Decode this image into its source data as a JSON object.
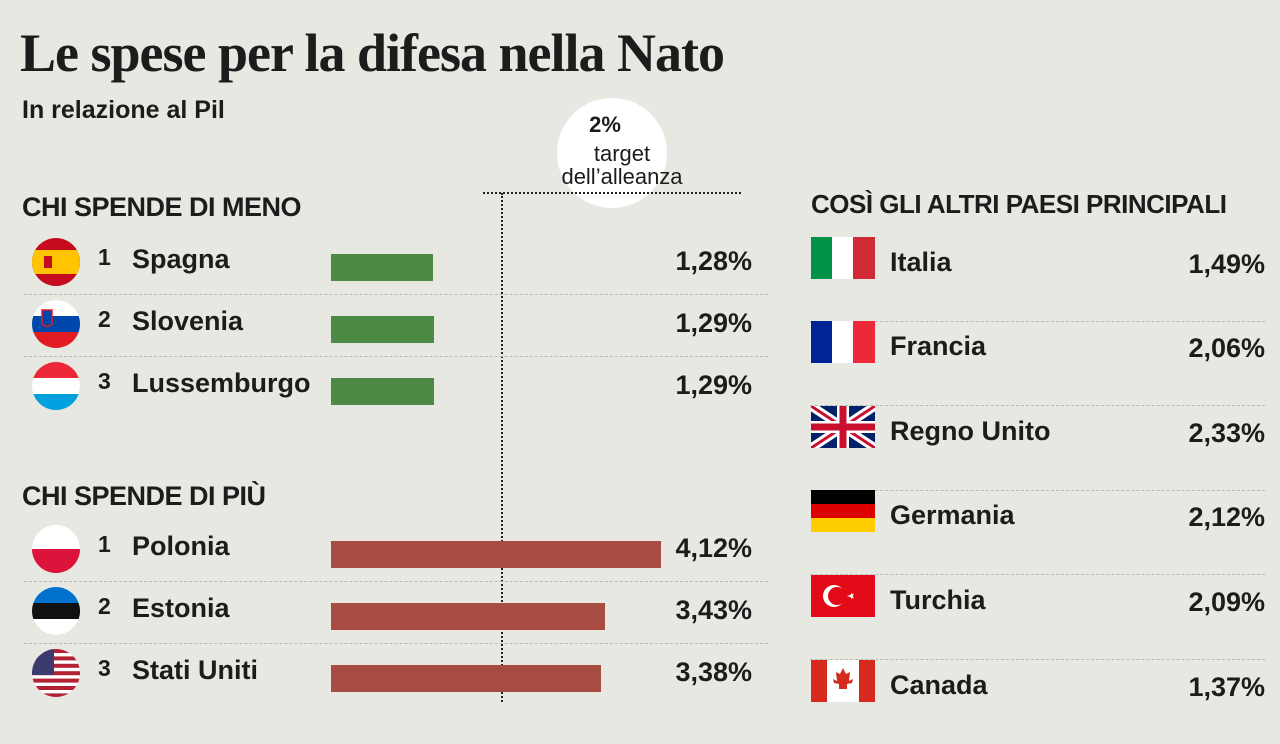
{
  "title": "Le spese per la difesa nella Nato",
  "subtitle": "In relazione al Pil",
  "target": {
    "value": "2%",
    "label_line1": "target",
    "label_line2": "dell’alleanza"
  },
  "colors": {
    "background": "#e8e8e3",
    "low_bar": "#4d8a45",
    "high_bar": "#a84b41"
  },
  "chart_data": [
    {
      "type": "bar",
      "title": "CHI SPENDE DI MENO",
      "categories": [
        "Spagna",
        "Slovenia",
        "Lussemburgo"
      ],
      "ranks": [
        "1",
        "2",
        "3"
      ],
      "values": [
        1.28,
        1.29,
        1.29
      ],
      "labels": [
        "1,28%",
        "1,29%",
        "1,29%"
      ],
      "flags": [
        "spain-flag-icon",
        "slovenia-flag-icon",
        "luxembourg-flag-icon"
      ],
      "reference_line": 2
    },
    {
      "type": "bar",
      "title": "CHI SPENDE DI PIÙ",
      "categories": [
        "Polonia",
        "Estonia",
        "Stati Uniti"
      ],
      "ranks": [
        "1",
        "2",
        "3"
      ],
      "values": [
        4.12,
        3.43,
        3.38
      ],
      "labels": [
        "4,12%",
        "3,43%",
        "3,38%"
      ],
      "flags": [
        "poland-flag-icon",
        "estonia-flag-icon",
        "usa-flag-icon"
      ],
      "reference_line": 2
    },
    {
      "type": "table",
      "title": "COSÌ GLI ALTRI PAESI PRINCIPALI",
      "categories": [
        "Italia",
        "Francia",
        "Regno Unito",
        "Germania",
        "Turchia",
        "Canada"
      ],
      "values": [
        1.49,
        2.06,
        2.33,
        2.12,
        2.09,
        1.37
      ],
      "labels": [
        "1,49%",
        "2,06%",
        "2,33%",
        "2,12%",
        "2,09%",
        "1,37%"
      ],
      "flags": [
        "italy-flag-icon",
        "france-flag-icon",
        "uk-flag-icon",
        "germany-flag-icon",
        "turkey-flag-icon",
        "canada-flag-icon"
      ]
    }
  ]
}
